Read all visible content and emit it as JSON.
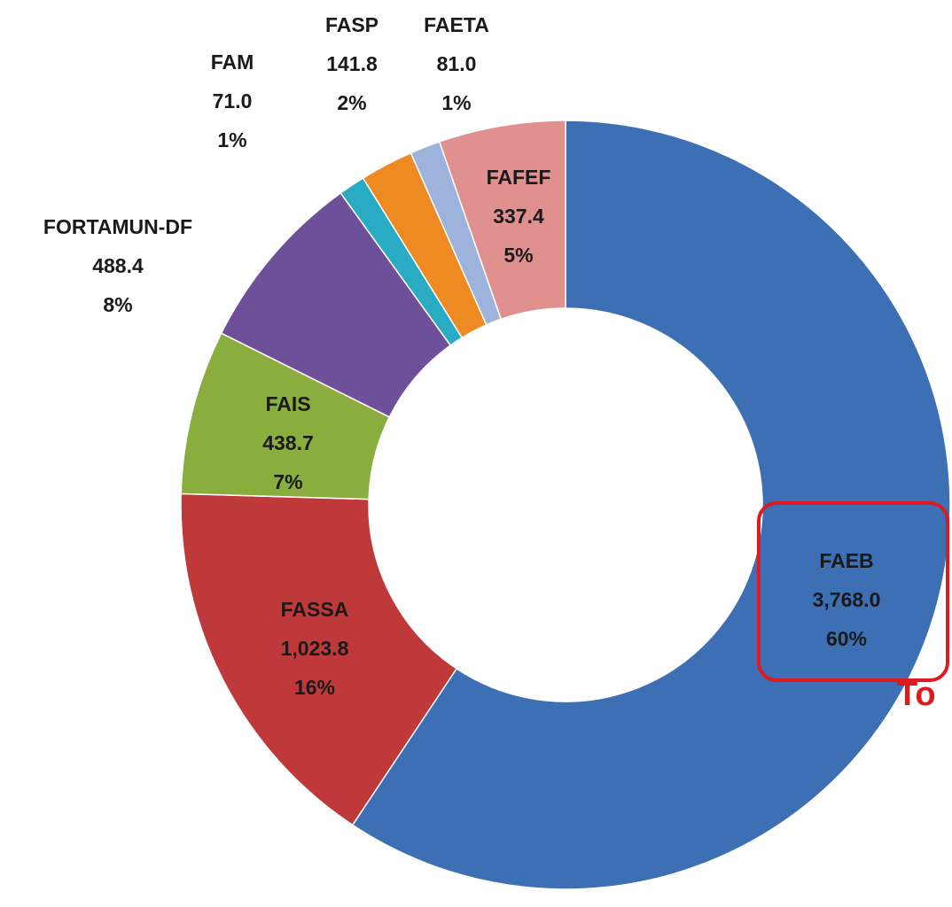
{
  "chart_data": {
    "type": "donut",
    "categories": [
      "FAEB",
      "FASSA",
      "FAIS",
      "FORTAMUN-DF",
      "FAM",
      "FASP",
      "FAETA",
      "FAFEF"
    ],
    "values": [
      3768.0,
      1023.8,
      438.7,
      488.4,
      71.0,
      141.8,
      81.0,
      337.4
    ],
    "value_labels": [
      "3,768.0",
      "1,023.8",
      "438.7",
      "488.4",
      "71.0",
      "141.8",
      "81.0",
      "337.4"
    ],
    "percent_labels": [
      "60%",
      "16%",
      "7%",
      "8%",
      "1%",
      "2%",
      "1%",
      "5%"
    ],
    "colors": [
      "#3d6fb5",
      "#c0393a",
      "#8aae3e",
      "#6d4f9a",
      "#2aabc4",
      "#ee8a22",
      "#9db3dc",
      "#e0908f"
    ],
    "annotation": "To"
  }
}
